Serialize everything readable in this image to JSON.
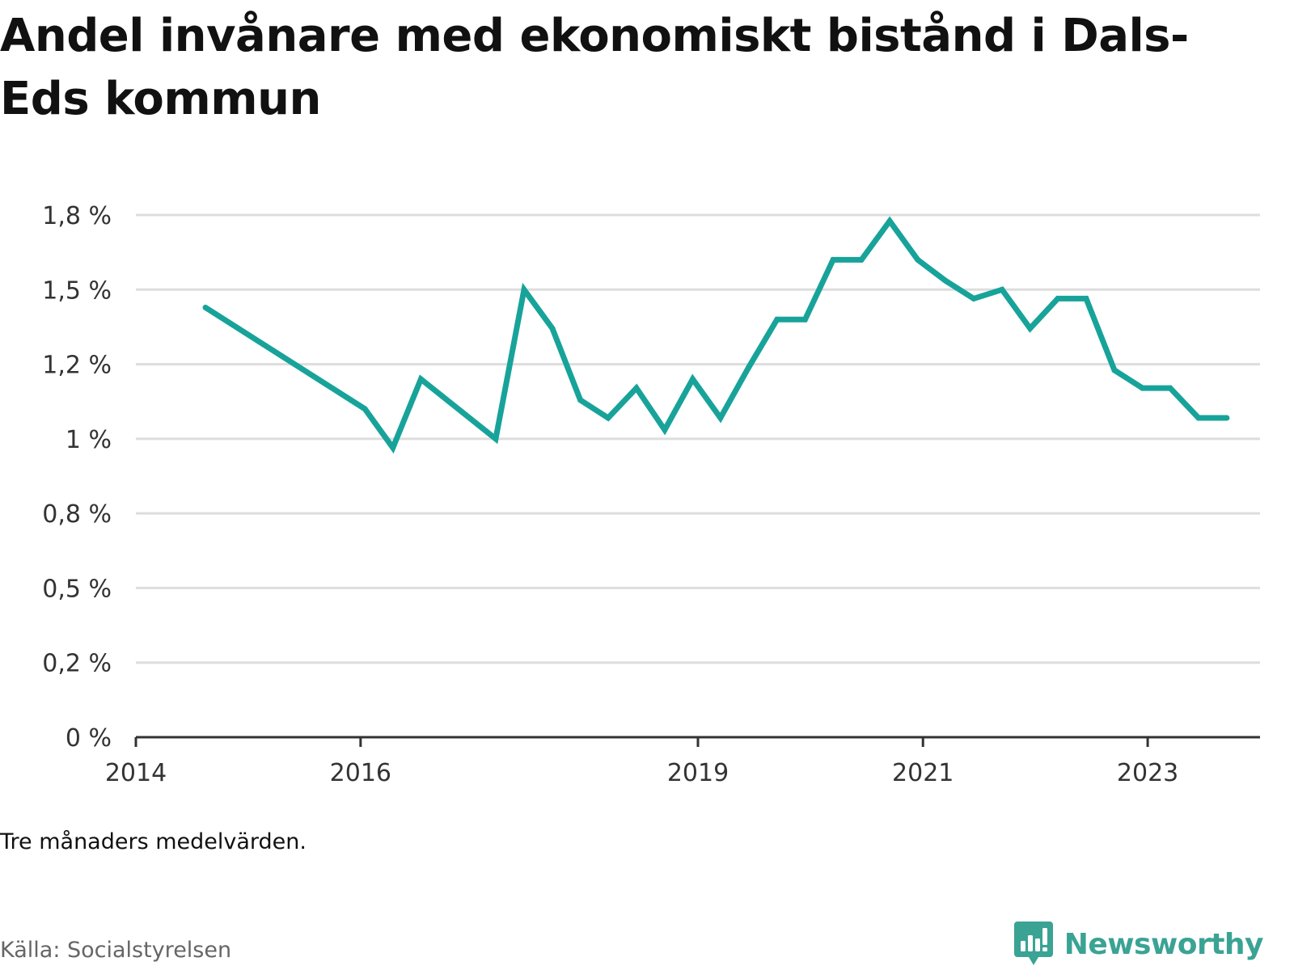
{
  "title": "Andel invånare med ekonomiskt bistånd i Dals-Eds kommun",
  "note": "Tre månaders medelvärden.",
  "source": "Källa: Socialstyrelsen",
  "brand": {
    "name": "Newsworthy",
    "icon": "newsworthy-logo-icon"
  },
  "colors": {
    "line": "#18a39a",
    "grid": "#dddddd",
    "axis": "#333333",
    "brand": "#3aa394"
  },
  "chart_data": {
    "type": "line",
    "title": "Andel invånare med ekonomiskt bistånd i Dals-Eds kommun",
    "xlabel": "",
    "ylabel": "",
    "ylim": [
      0,
      1.75
    ],
    "xlim": [
      "2014-01-01",
      "2024-01-01"
    ],
    "yticks": [
      {
        "value": 0,
        "label": "0 %"
      },
      {
        "value": 0.25,
        "label": "0,2 %"
      },
      {
        "value": 0.5,
        "label": "0,5 %"
      },
      {
        "value": 0.75,
        "label": "0,8 %"
      },
      {
        "value": 1.0,
        "label": "1 %"
      },
      {
        "value": 1.25,
        "label": "1,2 %"
      },
      {
        "value": 1.5,
        "label": "1,5 %"
      },
      {
        "value": 1.75,
        "label": "1,8 %"
      }
    ],
    "xticks": [
      {
        "date": "2014-01-01",
        "label": "2014"
      },
      {
        "date": "2016-01-01",
        "label": "2016"
      },
      {
        "date": "2019-01-01",
        "label": "2019"
      },
      {
        "date": "2021-01-01",
        "label": "2021"
      },
      {
        "date": "2023-01-01",
        "label": "2023"
      }
    ],
    "grid": true,
    "legend": "none",
    "series": [
      {
        "points": [
          {
            "x": "2014-08-15",
            "y": 1.44
          },
          {
            "x": "2016-01-15",
            "y": 1.1
          },
          {
            "x": "2016-04-15",
            "y": 0.97
          },
          {
            "x": "2016-07-15",
            "y": 1.2
          },
          {
            "x": "2017-03-15",
            "y": 1.0
          },
          {
            "x": "2017-06-15",
            "y": 1.5
          },
          {
            "x": "2017-09-15",
            "y": 1.37
          },
          {
            "x": "2017-12-15",
            "y": 1.13
          },
          {
            "x": "2018-03-15",
            "y": 1.07
          },
          {
            "x": "2018-06-15",
            "y": 1.17
          },
          {
            "x": "2018-09-15",
            "y": 1.03
          },
          {
            "x": "2018-12-15",
            "y": 1.2
          },
          {
            "x": "2019-03-15",
            "y": 1.07
          },
          {
            "x": "2019-06-15",
            "y": 1.24
          },
          {
            "x": "2019-09-15",
            "y": 1.4
          },
          {
            "x": "2019-12-15",
            "y": 1.4
          },
          {
            "x": "2020-03-15",
            "y": 1.6
          },
          {
            "x": "2020-06-15",
            "y": 1.6
          },
          {
            "x": "2020-09-15",
            "y": 1.73
          },
          {
            "x": "2020-12-15",
            "y": 1.6
          },
          {
            "x": "2021-03-15",
            "y": 1.53
          },
          {
            "x": "2021-06-15",
            "y": 1.47
          },
          {
            "x": "2021-09-15",
            "y": 1.5
          },
          {
            "x": "2021-12-15",
            "y": 1.37
          },
          {
            "x": "2022-03-15",
            "y": 1.47
          },
          {
            "x": "2022-06-15",
            "y": 1.47
          },
          {
            "x": "2022-09-15",
            "y": 1.23
          },
          {
            "x": "2022-12-15",
            "y": 1.17
          },
          {
            "x": "2023-03-15",
            "y": 1.17
          },
          {
            "x": "2023-06-15",
            "y": 1.07
          },
          {
            "x": "2023-09-15",
            "y": 1.07
          }
        ]
      }
    ]
  }
}
